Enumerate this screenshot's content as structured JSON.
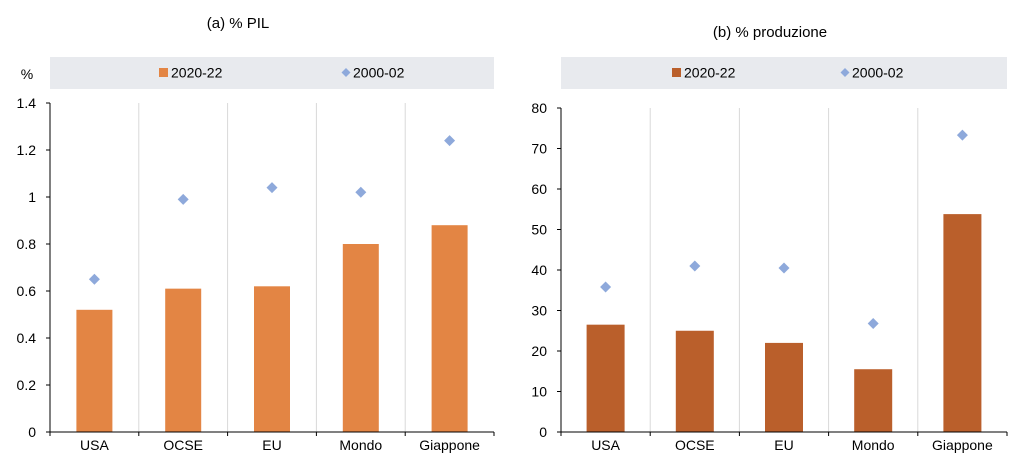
{
  "charts": [
    {
      "title": "(a) % PIL",
      "unit": "%",
      "colors": {
        "bar": "#E38544",
        "marker": "#8EA9DB"
      },
      "chart_data": {
        "type": "bar",
        "categories": [
          "USA",
          "OCSE",
          "EU",
          "Mondo",
          "Giappone"
        ],
        "series": [
          {
            "name": "2020-22",
            "kind": "bar",
            "values": [
              0.52,
              0.61,
              0.62,
              0.8,
              0.88
            ]
          },
          {
            "name": "2000-02",
            "kind": "marker",
            "values": [
              0.65,
              0.99,
              1.04,
              1.02,
              1.24
            ]
          }
        ],
        "ylim": [
          0,
          1.4
        ],
        "yticks": [
          "0",
          "0.2",
          "0.4",
          "0.6",
          "0.8",
          "1",
          "1.2",
          "1.4"
        ],
        "grid": "vertical",
        "legend": "top"
      }
    },
    {
      "title": "(b) % produzione",
      "unit": "",
      "colors": {
        "bar": "#BA5F2B",
        "marker": "#8EA9DB"
      },
      "chart_data": {
        "type": "bar",
        "categories": [
          "USA",
          "OCSE",
          "EU",
          "Mondo",
          "Giappone"
        ],
        "series": [
          {
            "name": "2020-22",
            "kind": "bar",
            "values": [
              26.5,
              25,
              22,
              15.5,
              53.8
            ]
          },
          {
            "name": "2000-02",
            "kind": "marker",
            "values": [
              35.8,
              41,
              40.5,
              26.8,
              73.3
            ]
          }
        ],
        "ylim": [
          0,
          80
        ],
        "yticks": [
          "0",
          "10",
          "20",
          "30",
          "40",
          "50",
          "60",
          "70",
          "80"
        ],
        "grid": "vertical",
        "legend": "top"
      }
    }
  ]
}
